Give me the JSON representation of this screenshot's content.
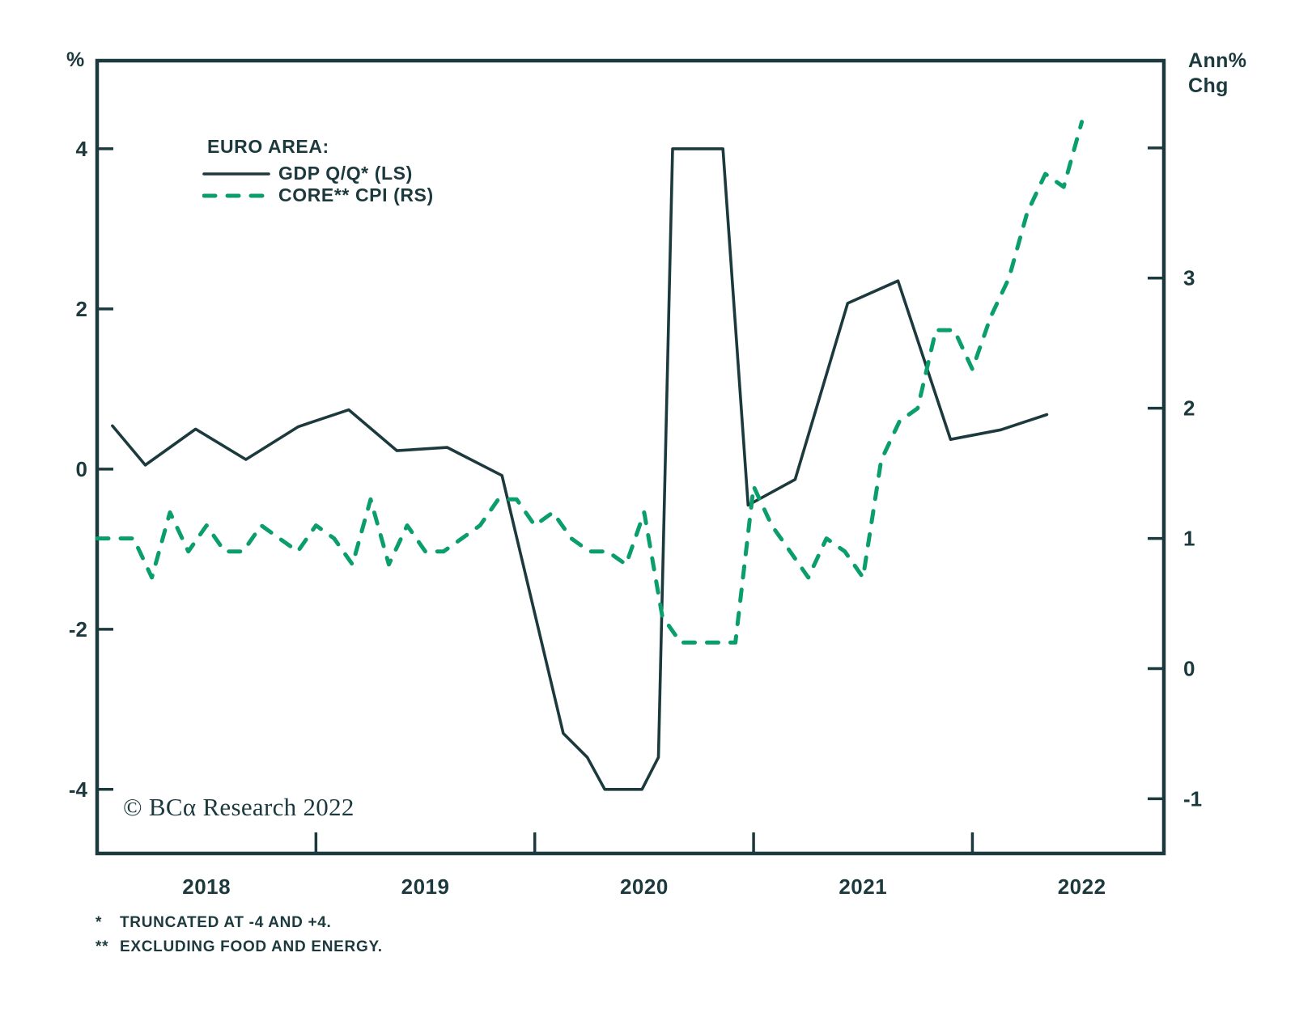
{
  "figure": {
    "left_axis_unit": "%",
    "right_axis_unit_line1": "Ann%",
    "right_axis_unit_line2": "Chg",
    "legend": {
      "title": "EURO AREA:",
      "series": [
        {
          "label": "GDP Q/Q* (LS)"
        },
        {
          "label": "CORE** CPI (RS)"
        }
      ]
    },
    "copyright": "© BCα Research 2022",
    "footnotes": [
      {
        "marker": "*",
        "text": "TRUNCATED AT -4 AND +4."
      },
      {
        "marker": "**",
        "text": "EXCLUDING FOOD AND ENERGY."
      }
    ]
  },
  "chart_data": {
    "type": "line",
    "title": "EURO AREA: GDP Q/Q* (LS) and CORE** CPI (RS)",
    "colors": {
      "dark": "#1c3a3e",
      "green": "#0a9e6d"
    },
    "x_axis": {
      "range": [
        2018.0,
        2022.875
      ],
      "tick_positions": [
        2019,
        2020,
        2021,
        2022
      ],
      "year_labels": [
        {
          "label": "2018",
          "t": 2018.5
        },
        {
          "label": "2019",
          "t": 2019.5
        },
        {
          "label": "2020",
          "t": 2020.5
        },
        {
          "label": "2021",
          "t": 2021.5
        },
        {
          "label": "2022",
          "t": 2022.5
        }
      ]
    },
    "left_axis": {
      "unit": "%",
      "range": [
        -4.8,
        5.1
      ],
      "ticks": [
        {
          "value": 4,
          "label": "4"
        },
        {
          "value": 2,
          "label": "2"
        },
        {
          "value": 0,
          "label": "0"
        },
        {
          "value": -2,
          "label": "-2"
        },
        {
          "value": -4,
          "label": "-4"
        }
      ]
    },
    "right_axis": {
      "unit": "Ann% Chg",
      "range": [
        -1.42,
        4.67
      ],
      "ticks": [
        {
          "value": 4,
          "label": ""
        },
        {
          "value": 3,
          "label": "3"
        },
        {
          "value": 2,
          "label": "2"
        },
        {
          "value": 1,
          "label": "1"
        },
        {
          "value": 0,
          "label": "0"
        },
        {
          "value": -1,
          "label": "-1"
        }
      ]
    },
    "series": [
      {
        "name": "GDP Q/Q* (LS)",
        "axis": "left",
        "style": "solid",
        "color": "#1c3a3e",
        "frequency": "quarterly",
        "truncated_at": [
          -4,
          4
        ],
        "points": [
          [
            2018.07,
            0.54
          ],
          [
            2018.22,
            0.05
          ],
          [
            2018.45,
            0.5
          ],
          [
            2018.68,
            0.12
          ],
          [
            2018.92,
            0.53
          ],
          [
            2019.15,
            0.74
          ],
          [
            2019.37,
            0.23
          ],
          [
            2019.6,
            0.27
          ],
          [
            2019.85,
            -0.08
          ],
          [
            2020.13,
            -3.3
          ],
          [
            2020.24,
            -3.6
          ],
          [
            2020.32,
            -4.0
          ],
          [
            2020.49,
            -4.0
          ],
          [
            2020.565,
            -3.6
          ],
          [
            2020.63,
            4.0
          ],
          [
            2020.86,
            4.0
          ],
          [
            2020.975,
            -0.45
          ],
          [
            2021.19,
            -0.13
          ],
          [
            2021.43,
            2.07
          ],
          [
            2021.66,
            2.35
          ],
          [
            2021.9,
            0.37
          ],
          [
            2022.13,
            0.49
          ],
          [
            2022.34,
            0.68
          ]
        ]
      },
      {
        "name": "CORE** CPI (RS)",
        "axis": "right",
        "style": "dashed",
        "color": "#0a9e6d",
        "frequency": "monthly",
        "points": [
          [
            2018.0,
            1.0
          ],
          [
            2018.083,
            1.0
          ],
          [
            2018.167,
            1.0
          ],
          [
            2018.25,
            0.7
          ],
          [
            2018.333,
            1.2
          ],
          [
            2018.417,
            0.9
          ],
          [
            2018.5,
            1.1
          ],
          [
            2018.583,
            0.9
          ],
          [
            2018.667,
            0.9
          ],
          [
            2018.75,
            1.1
          ],
          [
            2018.833,
            1.0
          ],
          [
            2018.917,
            0.9
          ],
          [
            2019.0,
            1.1
          ],
          [
            2019.083,
            1.0
          ],
          [
            2019.167,
            0.8
          ],
          [
            2019.25,
            1.3
          ],
          [
            2019.333,
            0.8
          ],
          [
            2019.417,
            1.1
          ],
          [
            2019.5,
            0.9
          ],
          [
            2019.583,
            0.9
          ],
          [
            2019.667,
            1.0
          ],
          [
            2019.75,
            1.1
          ],
          [
            2019.833,
            1.3
          ],
          [
            2019.917,
            1.3
          ],
          [
            2020.0,
            1.1
          ],
          [
            2020.083,
            1.2
          ],
          [
            2020.167,
            1.0
          ],
          [
            2020.25,
            0.9
          ],
          [
            2020.333,
            0.9
          ],
          [
            2020.417,
            0.8
          ],
          [
            2020.5,
            1.2
          ],
          [
            2020.583,
            0.4
          ],
          [
            2020.667,
            0.2
          ],
          [
            2020.75,
            0.2
          ],
          [
            2020.833,
            0.2
          ],
          [
            2020.917,
            0.2
          ],
          [
            2021.0,
            1.4
          ],
          [
            2021.083,
            1.1
          ],
          [
            2021.167,
            0.9
          ],
          [
            2021.25,
            0.7
          ],
          [
            2021.333,
            1.0
          ],
          [
            2021.417,
            0.9
          ],
          [
            2021.5,
            0.7
          ],
          [
            2021.583,
            1.6
          ],
          [
            2021.667,
            1.9
          ],
          [
            2021.75,
            2.0
          ],
          [
            2021.833,
            2.6
          ],
          [
            2021.917,
            2.6
          ],
          [
            2022.0,
            2.3
          ],
          [
            2022.083,
            2.7
          ],
          [
            2022.167,
            3.0
          ],
          [
            2022.25,
            3.5
          ],
          [
            2022.333,
            3.8
          ],
          [
            2022.417,
            3.7
          ],
          [
            2022.5,
            4.2
          ]
        ]
      }
    ]
  }
}
